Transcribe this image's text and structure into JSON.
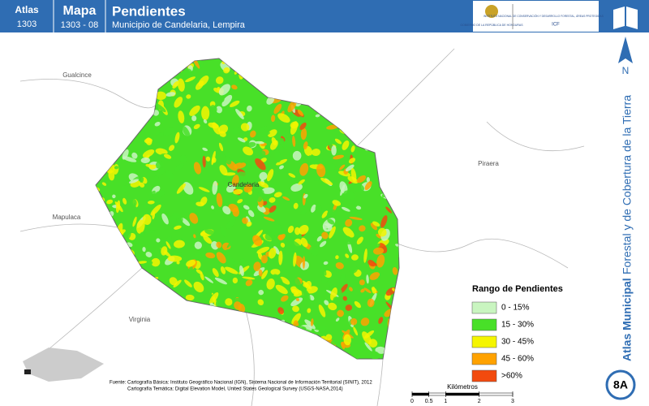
{
  "header": {
    "atlas_label": "Atlas",
    "atlas_number": "1303",
    "map_label": "Mapa",
    "map_number": "1303 - 08",
    "title": "Pendientes",
    "subtitle": "Municipio de Candelaria, Lempira",
    "logo_left": "GOBIERNO DE LA REPÚBLICA DE HONDURAS",
    "logo_right": "INSTITUTO NACIONAL DE CONSERVACIÓN Y DESARROLLO FORESTAL, ÁREAS PROTEGIDAS Y VIDA SILVESTRE",
    "logo_right_short": "ICF"
  },
  "map": {
    "places": [
      {
        "label": "Gualcince"
      },
      {
        "label": "Piraera"
      },
      {
        "label": "Candelaria"
      },
      {
        "label": "Mapulaca"
      },
      {
        "label": "Virginia"
      }
    ],
    "legend": {
      "title": "Rango de Pendientes",
      "items": [
        {
          "label": "0 - 15%",
          "color": "#c9f5c0"
        },
        {
          "label": "15 - 30%",
          "color": "#48e028"
        },
        {
          "label": "30 - 45%",
          "color": "#f5f500"
        },
        {
          "label": "45 - 60%",
          "color": "#ffa200"
        },
        {
          "label": ">60%",
          "color": "#f24a0e"
        }
      ]
    },
    "scale_bar": {
      "ticks": [
        0,
        0.5,
        1,
        2,
        3
      ],
      "unit": "Kilómetros"
    },
    "north": "N"
  },
  "sidebar": {
    "title_bold": "Atlas Municipal",
    "title_rest": "Forestal y de Cobertura de la Tierra",
    "page": "8A"
  },
  "sources": [
    "Fuente: Cartografía Básica: Instituto Geográfico Nacional (IGN), Sistema Nacional de Información Territorial (SINIT), 2012",
    "Cartografía Temática: Digital Elevation Model, United States Geological Survey (USGS-NASA,2014)"
  ]
}
